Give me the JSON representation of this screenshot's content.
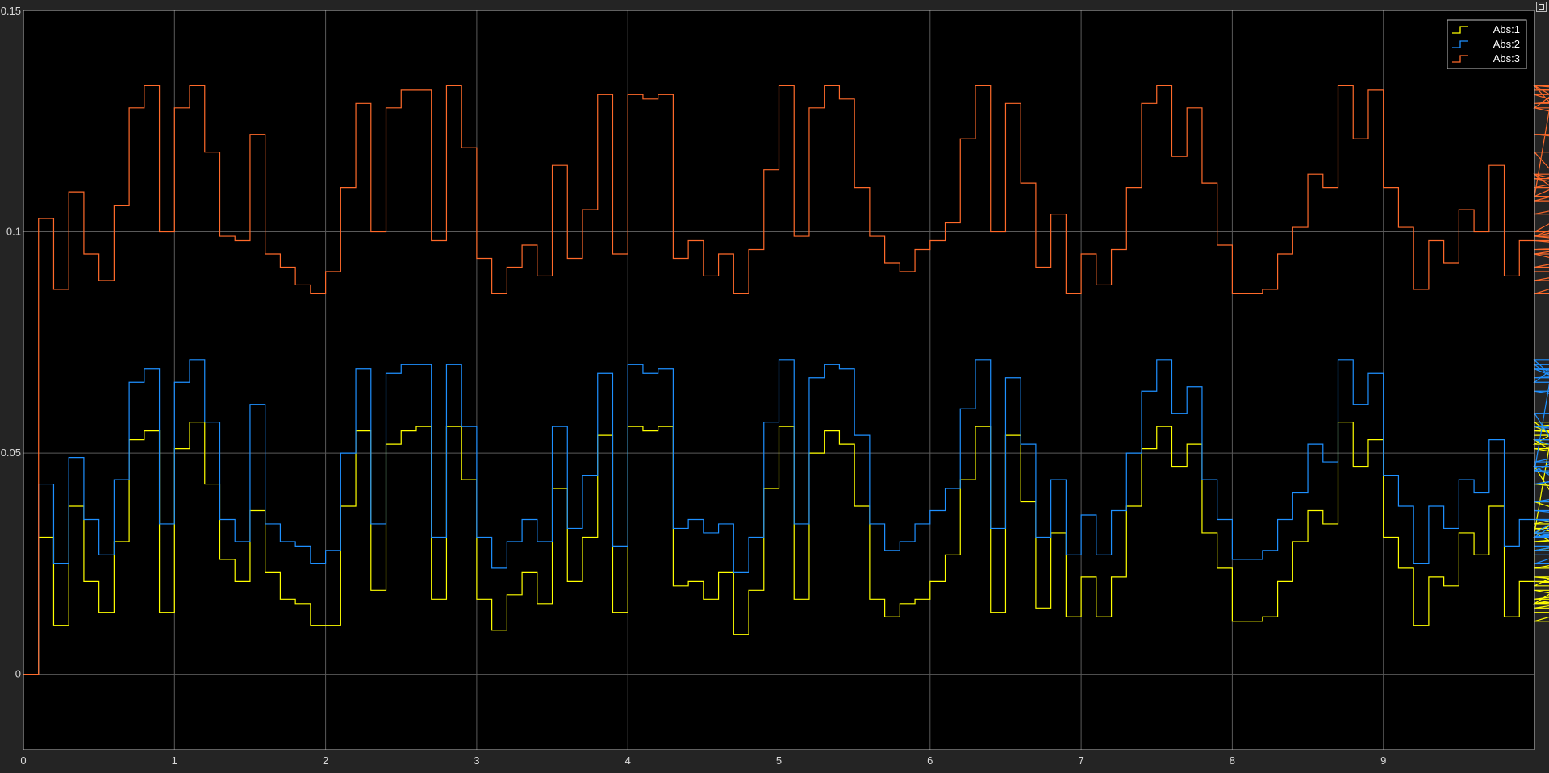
{
  "window": {
    "undock_icon": "undock-icon"
  },
  "colors": {
    "background": "#000000",
    "frame": "#bfbfbf",
    "grid": "#5a5a5a",
    "text": "#d9d9d9"
  },
  "chart_data": {
    "type": "line",
    "step": true,
    "title": "",
    "xlabel": "",
    "ylabel": "",
    "xlim": [
      0,
      10
    ],
    "ylim": [
      -0.017,
      0.15
    ],
    "xticks": [
      "0",
      "1",
      "2",
      "3",
      "4",
      "5",
      "6",
      "7",
      "8",
      "9"
    ],
    "xtick_values": [
      0,
      1,
      2,
      3,
      4,
      5,
      6,
      7,
      8,
      9
    ],
    "yticks": [
      "0",
      "0.05",
      "0.1",
      "0.15"
    ],
    "ytick_values": [
      0,
      0.05,
      0.1,
      0.15
    ],
    "grid": true,
    "legend_position": "top-right",
    "dt": 0.1,
    "series": [
      {
        "name": "Abs:1",
        "color": "#ffff00",
        "values": [
          0,
          0.031,
          0.011,
          0.038,
          0.021,
          0.014,
          0.03,
          0.053,
          0.055,
          0.014,
          0.051,
          0.057,
          0.043,
          0.026,
          0.021,
          0.037,
          0.023,
          0.017,
          0.016,
          0.011,
          0.011,
          0.038,
          0.055,
          0.019,
          0.052,
          0.055,
          0.056,
          0.017,
          0.056,
          0.044,
          0.017,
          0.01,
          0.018,
          0.023,
          0.016,
          0.042,
          0.021,
          0.031,
          0.054,
          0.014,
          0.056,
          0.055,
          0.056,
          0.02,
          0.021,
          0.017,
          0.023,
          0.009,
          0.019,
          0.042,
          0.056,
          0.017,
          0.05,
          0.055,
          0.052,
          0.038,
          0.017,
          0.013,
          0.016,
          0.017,
          0.021,
          0.027,
          0.044,
          0.056,
          0.014,
          0.054,
          0.039,
          0.015,
          0.032,
          0.013,
          0.022,
          0.013,
          0.022,
          0.038,
          0.051,
          0.056,
          0.047,
          0.052,
          0.032,
          0.024,
          0.012,
          0.012,
          0.013,
          0.021,
          0.03,
          0.037,
          0.034,
          0.057,
          0.047,
          0.053,
          0.031,
          0.024,
          0.011,
          0.022,
          0.02,
          0.032,
          0.027,
          0.038,
          0.013,
          0.021,
          0.032,
          0.052,
          0.056,
          0.057,
          0.047,
          0.02,
          0.03,
          0.032,
          0.017,
          0.021,
          0.019,
          0.012,
          0.024,
          0.032,
          0.054,
          0.055,
          0.053,
          0.016,
          0.055,
          0.051,
          0.039,
          0.016,
          0.022,
          0.014,
          0.015,
          0.028,
          0.043,
          0.033,
          0.016,
          0.034,
          0.056,
          0.014
        ]
      },
      {
        "name": "Abs:2",
        "color": "#1e90ff",
        "values": [
          0,
          0.043,
          0.025,
          0.049,
          0.035,
          0.027,
          0.044,
          0.066,
          0.069,
          0.034,
          0.066,
          0.071,
          0.057,
          0.035,
          0.03,
          0.061,
          0.034,
          0.03,
          0.029,
          0.025,
          0.028,
          0.05,
          0.069,
          0.034,
          0.068,
          0.07,
          0.07,
          0.031,
          0.07,
          0.056,
          0.031,
          0.024,
          0.03,
          0.035,
          0.03,
          0.056,
          0.033,
          0.045,
          0.068,
          0.029,
          0.07,
          0.068,
          0.069,
          0.033,
          0.035,
          0.032,
          0.034,
          0.023,
          0.031,
          0.057,
          0.071,
          0.034,
          0.067,
          0.07,
          0.069,
          0.054,
          0.034,
          0.028,
          0.03,
          0.034,
          0.037,
          0.042,
          0.06,
          0.071,
          0.033,
          0.067,
          0.052,
          0.031,
          0.044,
          0.027,
          0.036,
          0.027,
          0.037,
          0.05,
          0.064,
          0.071,
          0.059,
          0.065,
          0.044,
          0.035,
          0.026,
          0.026,
          0.028,
          0.035,
          0.041,
          0.052,
          0.048,
          0.071,
          0.061,
          0.068,
          0.045,
          0.038,
          0.025,
          0.038,
          0.033,
          0.044,
          0.041,
          0.053,
          0.029,
          0.035,
          0.046,
          0.066,
          0.071,
          0.071,
          0.059,
          0.032,
          0.043,
          0.047,
          0.031,
          0.035,
          0.032,
          0.025,
          0.039,
          0.046,
          0.067,
          0.07,
          0.07,
          0.031,
          0.069,
          0.064,
          0.053,
          0.031,
          0.037,
          0.029,
          0.028,
          0.043,
          0.056,
          0.046,
          0.031,
          0.048,
          0.069,
          0.027
        ]
      },
      {
        "name": "Abs:3",
        "color": "#ff6a2a",
        "values": [
          0,
          0.103,
          0.087,
          0.109,
          0.095,
          0.089,
          0.106,
          0.128,
          0.133,
          0.1,
          0.128,
          0.133,
          0.118,
          0.099,
          0.098,
          0.122,
          0.095,
          0.092,
          0.088,
          0.086,
          0.091,
          0.11,
          0.129,
          0.1,
          0.128,
          0.132,
          0.132,
          0.098,
          0.133,
          0.119,
          0.094,
          0.086,
          0.092,
          0.097,
          0.09,
          0.115,
          0.094,
          0.105,
          0.131,
          0.095,
          0.131,
          0.13,
          0.131,
          0.094,
          0.098,
          0.09,
          0.095,
          0.086,
          0.096,
          0.114,
          0.133,
          0.099,
          0.128,
          0.133,
          0.13,
          0.11,
          0.099,
          0.093,
          0.091,
          0.096,
          0.098,
          0.102,
          0.121,
          0.133,
          0.1,
          0.129,
          0.111,
          0.092,
          0.104,
          0.086,
          0.095,
          0.088,
          0.096,
          0.11,
          0.129,
          0.133,
          0.117,
          0.128,
          0.111,
          0.097,
          0.086,
          0.086,
          0.087,
          0.095,
          0.101,
          0.113,
          0.11,
          0.133,
          0.121,
          0.132,
          0.11,
          0.101,
          0.087,
          0.098,
          0.093,
          0.105,
          0.1,
          0.115,
          0.09,
          0.098,
          0.108,
          0.128,
          0.133,
          0.133,
          0.118,
          0.099,
          0.107,
          0.113,
          0.092,
          0.098,
          0.095,
          0.086,
          0.099,
          0.108,
          0.129,
          0.132,
          0.133,
          0.1,
          0.133,
          0.128,
          0.113,
          0.096,
          0.099,
          0.091,
          0.089,
          0.104,
          0.122,
          0.112,
          0.095,
          0.11,
          0.131,
          0.1
        ]
      }
    ]
  }
}
